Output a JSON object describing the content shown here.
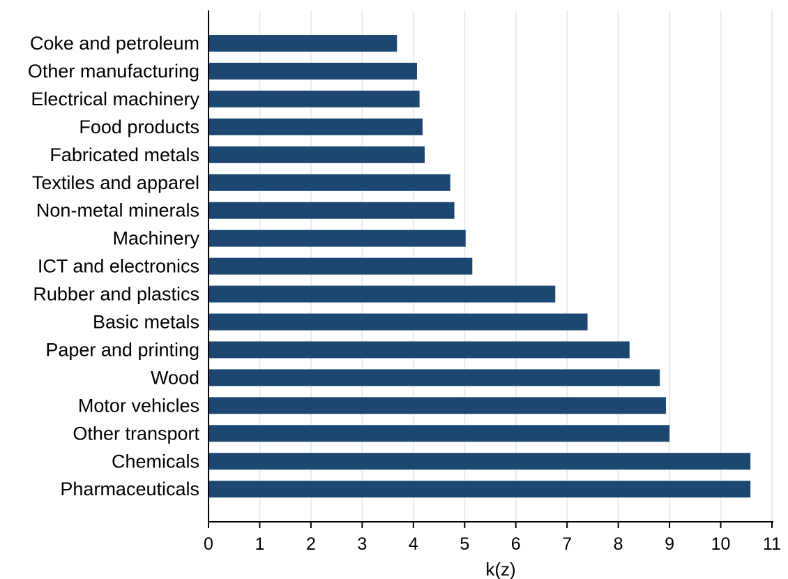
{
  "chart_data": {
    "type": "bar",
    "orientation": "horizontal",
    "categories": [
      "Coke and petroleum",
      "Other manufacturing",
      "Electrical machinery",
      "Food products",
      "Fabricated metals",
      "Textiles and apparel",
      "Non-metal minerals",
      "Machinery",
      "ICT and electronics",
      "Rubber and plastics",
      "Basic metals",
      "Paper and printing",
      "Wood",
      "Motor vehicles",
      "Other transport",
      "Chemicals",
      "Pharmaceuticals"
    ],
    "values": [
      3.68,
      4.07,
      4.12,
      4.18,
      4.22,
      4.72,
      4.8,
      5.02,
      5.15,
      6.77,
      7.4,
      8.22,
      8.81,
      8.93,
      9.0,
      10.58,
      10.58
    ],
    "xlabel": "k(z)",
    "ylabel": "",
    "xlim": [
      0,
      11
    ],
    "xticks": [
      0,
      1,
      2,
      3,
      4,
      5,
      6,
      7,
      8,
      9,
      10,
      11
    ],
    "grid": "vertical",
    "legend": "none",
    "bar_color": "#1b4770",
    "grid_color": "#e4edf0"
  }
}
